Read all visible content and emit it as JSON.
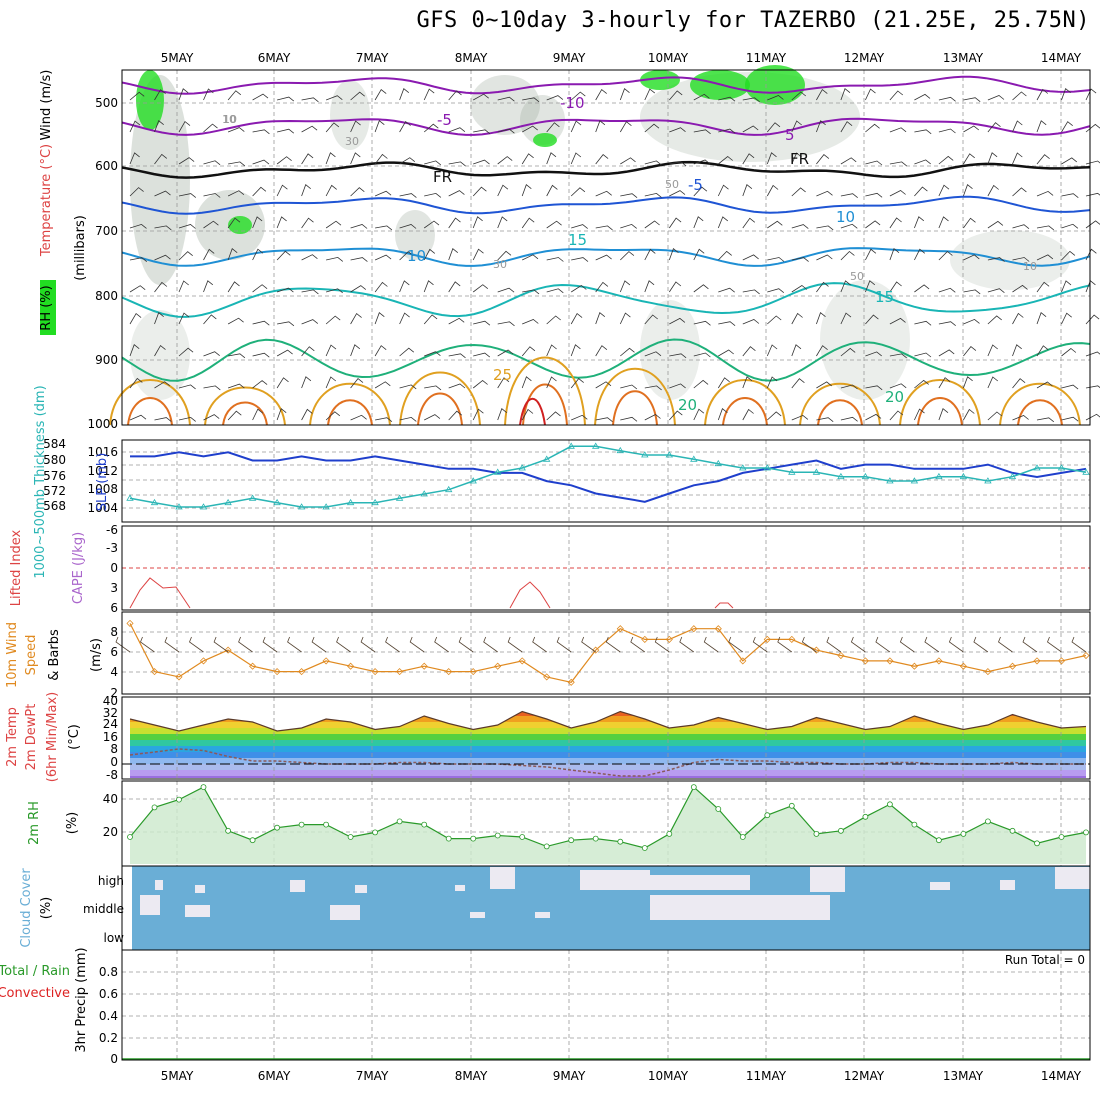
{
  "title": "GFS 0~10day 3-hourly for TAZERBO (21.25E, 25.75N)",
  "dates": [
    "5MAY",
    "6MAY",
    "7MAY",
    "8MAY",
    "9MAY",
    "10MAY",
    "11MAY",
    "12MAY",
    "13MAY",
    "14MAY"
  ],
  "colors": {
    "rh_green": "#22dd22",
    "rh_gray": "#9aaa9a",
    "slp": "#1f3fcc",
    "thickness": "#2ab5b5",
    "lifted": "#dd4444",
    "cape": "#aa66cc",
    "wind10": "#e08a20",
    "rh2m": "#2a9a2a",
    "cloud": "#6aaed6",
    "precip_total": "#2a9a2a",
    "precip_conv": "#dd2222"
  },
  "panels": {
    "upper": {
      "ylabel_rh": "RH (%)",
      "ylabel_temp": "Temperature (°C)",
      "ylabel_wind": "Wind (m/s)",
      "ylabel_mb": "(millibars)",
      "yticks": [
        "500",
        "600",
        "700",
        "800",
        "900",
        "1000"
      ],
      "contour_labels": [
        "-10",
        "-5",
        "5",
        "-5",
        "10",
        "10",
        "15",
        "15",
        "20",
        "20",
        "25",
        "FR",
        "FR",
        "10",
        "30",
        "50",
        "10",
        "30",
        "50",
        "10"
      ]
    },
    "slp": {
      "ylabel_thick": "1000~500mb Thickness (dm)",
      "ylabel_slp": "SLP (mb)",
      "left_ticks": [
        "584",
        "580",
        "576",
        "572",
        "568"
      ],
      "right_ticks": [
        "1016",
        "1012",
        "1008",
        "1004"
      ]
    },
    "lifted": {
      "ylabel_li": "Lifted Index",
      "ylabel_cape": "CAPE (J/kg)",
      "yticks": [
        "-6",
        "-3",
        "0",
        "3",
        "6"
      ]
    },
    "wind10": {
      "ylabel_a": "10m Wind",
      "ylabel_b": "Speed",
      "ylabel_c": "(m/s)",
      "ylabel_d": "& Barbs",
      "yticks": [
        "8",
        "6",
        "4",
        "2"
      ]
    },
    "temp2m": {
      "ylabel_a": "2m Temp",
      "ylabel_b": "2m DewPt",
      "ylabel_c": "(6hr Min/Max)",
      "ylabel_d": "(°C)",
      "yticks": [
        "40",
        "32",
        "24",
        "16",
        "8",
        "0",
        "-8"
      ]
    },
    "rh2m": {
      "ylabel_a": "2m RH",
      "ylabel_b": "(%)",
      "yticks": [
        "40",
        "20"
      ]
    },
    "cloud": {
      "ylabel_a": "Cloud Cover",
      "ylabel_b": "(%)",
      "levels": [
        "high",
        "middle",
        "low"
      ]
    },
    "precip": {
      "ylabel_a": "Total / Rain",
      "ylabel_b": "Convective",
      "ylabel_c": "3hr Precip (mm)",
      "yticks": [
        "0.8",
        "0.6",
        "0.4",
        "0.2",
        "0"
      ],
      "run_total": "Run Total = 0"
    }
  },
  "chart_data": [
    {
      "type": "line",
      "title": "",
      "x": [
        "4.5MAY",
        "4.75MAY",
        "5MAY",
        "5.25MAY",
        "5.5MAY",
        "5.75MAY",
        "6MAY",
        "6.25MAY",
        "6.5MAY",
        "6.75MAY",
        "7MAY",
        "7.25MAY",
        "7.5MAY",
        "7.75MAY",
        "8MAY",
        "8.25MAY",
        "8.5MAY",
        "8.75MAY",
        "9MAY",
        "9.25MAY",
        "9.5MAY",
        "9.75MAY",
        "10MAY",
        "10.25MAY",
        "10.5MAY",
        "10.75MAY",
        "11MAY",
        "11.25MAY",
        "11.5MAY",
        "11.75MAY",
        "12MAY",
        "12.25MAY",
        "12.5MAY",
        "12.75MAY",
        "13MAY",
        "13.25MAY",
        "13.5MAY",
        "13.75MAY",
        "14MAY",
        "14.25MAY"
      ],
      "series": [
        {
          "name": "SLP (mb)",
          "values": [
            1015,
            1015,
            1016,
            1015,
            1016,
            1014,
            1014,
            1015,
            1014,
            1014,
            1015,
            1014,
            1013,
            1012,
            1012,
            1011,
            1011,
            1009,
            1008,
            1006,
            1005,
            1004,
            1006,
            1008,
            1009,
            1011,
            1012,
            1013,
            1014,
            1012,
            1013,
            1013,
            1012,
            1012,
            1012,
            1013,
            1011,
            1010,
            1011,
            1012
          ]
        },
        {
          "name": "Thickness (dm)",
          "values": [
            571,
            570,
            569,
            569,
            570,
            571,
            570,
            569,
            569,
            570,
            570,
            571,
            572,
            573,
            575,
            577,
            578,
            580,
            583,
            583,
            582,
            581,
            581,
            580,
            579,
            578,
            578,
            577,
            577,
            576,
            576,
            575,
            575,
            576,
            576,
            575,
            576,
            578,
            578,
            577
          ]
        }
      ]
    },
    {
      "type": "line",
      "title": "",
      "x": [
        "4.5MAY",
        "4.75MAY",
        "5MAY",
        "5.25MAY",
        "5.5MAY",
        "5.75MAY",
        "6MAY",
        "6.25MAY",
        "6.5MAY",
        "6.75MAY",
        "7MAY",
        "7.25MAY",
        "7.5MAY",
        "7.75MAY",
        "8MAY",
        "8.25MAY",
        "8.5MAY",
        "8.75MAY",
        "9MAY",
        "9.25MAY",
        "9.5MAY",
        "9.75MAY",
        "10MAY",
        "10.25MAY",
        "10.5MAY",
        "10.75MAY",
        "11MAY",
        "11.25MAY",
        "11.5MAY",
        "11.75MAY",
        "12MAY",
        "12.25MAY",
        "12.5MAY",
        "12.75MAY",
        "13MAY",
        "13.25MAY",
        "13.5MAY",
        "13.75MAY",
        "14MAY",
        "14.25MAY"
      ],
      "series": [
        {
          "name": "10m Wind Speed (m/s)",
          "values": [
            8.5,
            4,
            3.5,
            5,
            6,
            4.5,
            4,
            4,
            5,
            4.5,
            4,
            4,
            4.5,
            4,
            4,
            4.5,
            5,
            3.5,
            3,
            6,
            8,
            7,
            7,
            8,
            8,
            5,
            7,
            7,
            6,
            5.5,
            5,
            5,
            4.5,
            5,
            4.5,
            4,
            4.5,
            5,
            5,
            5.5
          ]
        }
      ]
    },
    {
      "type": "area",
      "title": "",
      "x": [
        "4.5MAY",
        "4.75MAY",
        "5MAY",
        "5.25MAY",
        "5.5MAY",
        "5.75MAY",
        "6MAY",
        "6.25MAY",
        "6.5MAY",
        "6.75MAY",
        "7MAY",
        "7.25MAY",
        "7.5MAY",
        "7.75MAY",
        "8MAY",
        "8.25MAY",
        "8.5MAY",
        "8.75MAY",
        "9MAY",
        "9.25MAY",
        "9.5MAY",
        "9.75MAY",
        "10MAY",
        "10.25MAY",
        "10.5MAY",
        "10.75MAY",
        "11MAY",
        "11.25MAY",
        "11.5MAY",
        "11.75MAY",
        "12MAY",
        "12.25MAY",
        "12.5MAY",
        "12.75MAY",
        "13MAY",
        "13.25MAY",
        "13.5MAY",
        "13.75MAY",
        "14MAY",
        "14.25MAY"
      ],
      "series": [
        {
          "name": "2m Temp (°C)",
          "values": [
            30,
            26,
            22,
            26,
            30,
            28,
            22,
            24,
            30,
            28,
            23,
            25,
            32,
            27,
            23,
            26,
            35,
            30,
            24,
            28,
            35,
            30,
            24,
            26,
            31,
            27,
            23,
            25,
            31,
            27,
            23,
            25,
            32,
            27,
            23,
            26,
            33,
            28,
            24,
            25
          ]
        },
        {
          "name": "2m DewPt (°C)",
          "values": [
            6,
            8,
            10,
            9,
            5,
            2,
            2,
            1,
            0,
            0,
            0,
            1,
            1,
            0,
            0,
            0,
            -1,
            -2,
            -4,
            -6,
            -8,
            -8,
            -4,
            1,
            3,
            2,
            2,
            1,
            1,
            0,
            0,
            1,
            1,
            0,
            0,
            0,
            1,
            0,
            0,
            0
          ]
        }
      ]
    },
    {
      "type": "area",
      "title": "",
      "x": [
        "4.5MAY",
        "4.75MAY",
        "5MAY",
        "5.25MAY",
        "5.5MAY",
        "5.75MAY",
        "6MAY",
        "6.25MAY",
        "6.5MAY",
        "6.75MAY",
        "7MAY",
        "7.25MAY",
        "7.5MAY",
        "7.75MAY",
        "8MAY",
        "8.25MAY",
        "8.5MAY",
        "8.75MAY",
        "9MAY",
        "9.25MAY",
        "9.5MAY",
        "9.75MAY",
        "10MAY",
        "10.25MAY",
        "10.5MAY",
        "10.75MAY",
        "11MAY",
        "11.25MAY",
        "11.5MAY",
        "11.75MAY",
        "12MAY",
        "12.25MAY",
        "12.5MAY",
        "12.75MAY",
        "13MAY",
        "13.25MAY",
        "13.5MAY",
        "13.75MAY",
        "14MAY",
        "14.25MAY"
      ],
      "series": [
        {
          "name": "2m RH (%)",
          "values": [
            16,
            35,
            40,
            48,
            20,
            14,
            22,
            24,
            24,
            16,
            19,
            26,
            24,
            15,
            15,
            17,
            16,
            10,
            14,
            15,
            13,
            9,
            18,
            48,
            34,
            16,
            30,
            36,
            18,
            20,
            29,
            37,
            24,
            14,
            18,
            26,
            20,
            12,
            16,
            19
          ]
        }
      ]
    },
    {
      "type": "bar",
      "title": "",
      "x": [
        "4.5MAY",
        "14.25MAY"
      ],
      "series": [
        {
          "name": "3hr Precip (mm)",
          "values": [
            0,
            0
          ]
        }
      ],
      "ylim": [
        0,
        0.9
      ]
    }
  ]
}
